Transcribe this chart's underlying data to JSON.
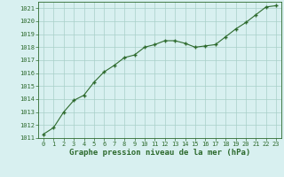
{
  "x": [
    0,
    1,
    2,
    3,
    4,
    5,
    6,
    7,
    8,
    9,
    10,
    11,
    12,
    13,
    14,
    15,
    16,
    17,
    18,
    19,
    20,
    21,
    22,
    23
  ],
  "y": [
    1011.3,
    1011.8,
    1013.0,
    1013.9,
    1014.3,
    1015.3,
    1016.1,
    1016.6,
    1017.2,
    1017.4,
    1018.0,
    1018.2,
    1018.5,
    1018.5,
    1018.3,
    1018.0,
    1018.1,
    1018.2,
    1018.8,
    1019.4,
    1019.9,
    1020.5,
    1021.1,
    1021.2
  ],
  "line_color": "#2d6a2d",
  "marker_color": "#2d6a2d",
  "bg_color": "#d8f0f0",
  "grid_color": "#a8d0c8",
  "xlabel": "Graphe pression niveau de la mer (hPa)",
  "ylim": [
    1011,
    1021.5
  ],
  "xlim": [
    -0.5,
    23.5
  ],
  "yticks": [
    1011,
    1012,
    1013,
    1014,
    1015,
    1016,
    1017,
    1018,
    1019,
    1020,
    1021
  ],
  "xticks": [
    0,
    1,
    2,
    3,
    4,
    5,
    6,
    7,
    8,
    9,
    10,
    11,
    12,
    13,
    14,
    15,
    16,
    17,
    18,
    19,
    20,
    21,
    22,
    23
  ],
  "tick_fontsize": 5.0,
  "xlabel_fontsize": 6.5,
  "line_width": 0.8,
  "marker_size": 3.5
}
